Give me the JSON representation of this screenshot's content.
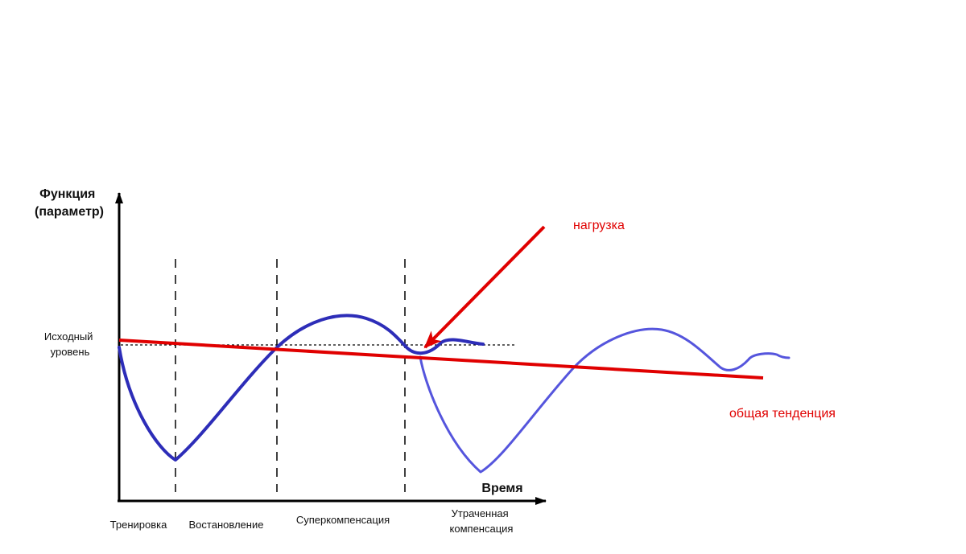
{
  "y_axis_label": [
    "Функция",
    "(параметр)"
  ],
  "x_axis_label": "Время",
  "baseline_label": [
    "Исходный",
    "уровень"
  ],
  "phases": [
    {
      "label": [
        "Тренировка"
      ]
    },
    {
      "label": [
        "Востановление"
      ]
    },
    {
      "label": [
        "Суперкомпенсация"
      ]
    },
    {
      "label": [
        "Утраченная",
        "компенсация"
      ]
    }
  ],
  "annotations": {
    "load_label": "нагрузка",
    "trend_label": "общая тенденция"
  },
  "colors": {
    "axis": "#000000",
    "original_curve": "#2d2db8",
    "added_curve": "#5555dd",
    "annotation": "#e00000",
    "text": "#111111"
  }
}
